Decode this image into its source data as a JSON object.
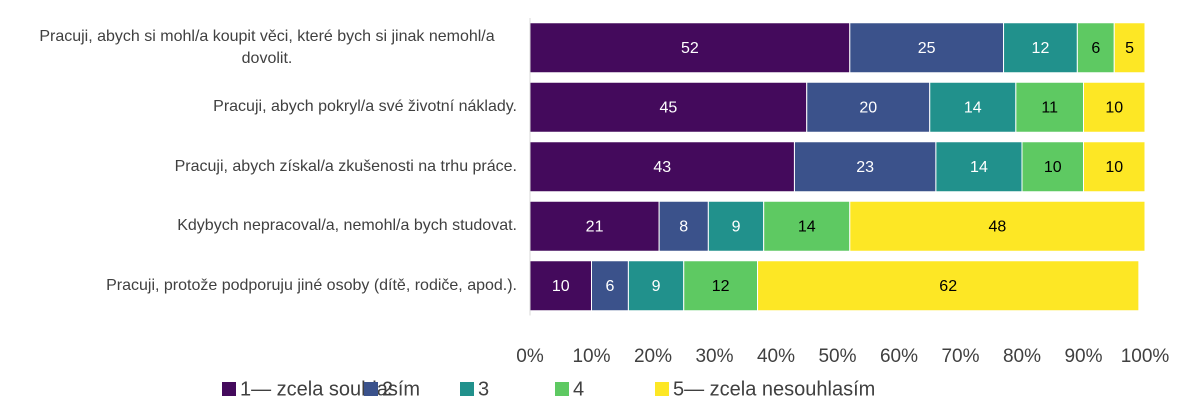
{
  "chart_data": {
    "type": "stacked-bar-horizontal",
    "categories": [
      "Pracuji, abych si mohl/a koupit věci, které bych si jinak nemohl/a dovolit.",
      "Pracuji, abych pokryl/a své životní náklady.",
      "Pracuji, abych získal/a zkušenosti na trhu práce.",
      "Kdybych nepracoval/a, nemohl/a bych studovat.",
      "Pracuji, protože podporuju jiné osoby (dítě, rodiče, apod.)."
    ],
    "series": [
      {
        "name": "1— zcela souhlasím",
        "color": "#440a5c",
        "values": [
          52,
          45,
          43,
          21,
          10
        ]
      },
      {
        "name": "2",
        "color": "#3b528b",
        "values": [
          25,
          20,
          23,
          8,
          6
        ]
      },
      {
        "name": "3",
        "color": "#21918c",
        "values": [
          12,
          14,
          14,
          9,
          9
        ]
      },
      {
        "name": "4",
        "color": "#5ec962",
        "values": [
          6,
          11,
          10,
          14,
          12
        ]
      },
      {
        "name": "5— zcela nesouhlasím",
        "color": "#fde725",
        "values": [
          5,
          10,
          10,
          48,
          62
        ]
      }
    ],
    "xlim": [
      0,
      100
    ],
    "xticks": [
      {
        "value": 0,
        "label": "0%"
      },
      {
        "value": 10,
        "label": "10%"
      },
      {
        "value": 20,
        "label": "20%"
      },
      {
        "value": 30,
        "label": "30%"
      },
      {
        "value": 40,
        "label": "40%"
      },
      {
        "value": 50,
        "label": "50%"
      },
      {
        "value": 60,
        "label": "60%"
      },
      {
        "value": 70,
        "label": "70%"
      },
      {
        "value": 80,
        "label": "80%"
      },
      {
        "value": 90,
        "label": "90%"
      },
      {
        "value": 100,
        "label": "100%"
      }
    ],
    "legend": "bottom"
  }
}
